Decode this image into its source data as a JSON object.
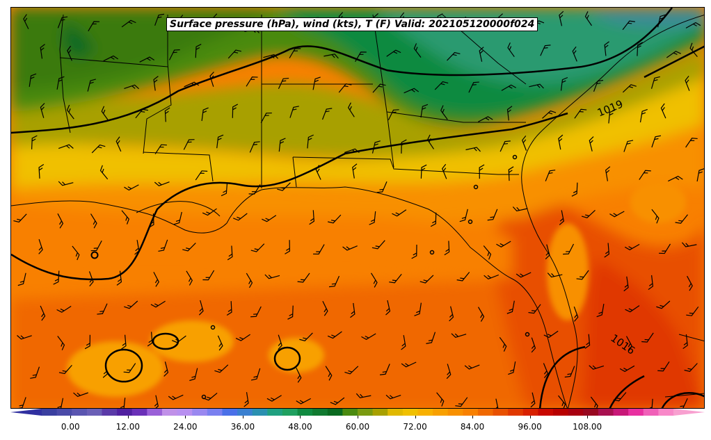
{
  "title": "Surface pressure (hPa), wind (kts), T (F) Valid: 202105120000f024",
  "isobar_labels": [
    "1019",
    "1016"
  ],
  "colorbar": {
    "min": -6,
    "max": 126,
    "step": 3,
    "extend": "both",
    "tick_labels": [
      "0.00",
      "12.00",
      "24.00",
      "36.00",
      "48.00",
      "60.00",
      "72.00",
      "84.00",
      "96.00",
      "108.00"
    ],
    "colors": [
      "#3a3fa0",
      "#4a4aa8",
      "#5a55b0",
      "#6a5fb6",
      "#5a3aa8",
      "#5020a0",
      "#6a30b8",
      "#9a60d8",
      "#c090e8",
      "#b890f0",
      "#9a88f0",
      "#7a80f0",
      "#4a70e8",
      "#3a80d0",
      "#2a90b0",
      "#20a080",
      "#20a060",
      "#108a40",
      "#107a30",
      "#0a6a20",
      "#4a8a10",
      "#7a9a10",
      "#a8a000",
      "#e0b800",
      "#f0c000",
      "#f8b000",
      "#f8a000",
      "#f89000",
      "#f88000",
      "#f06800",
      "#e85000",
      "#e03800",
      "#d82000",
      "#c80800",
      "#b80000",
      "#a80010",
      "#980820",
      "#a81050",
      "#c81878",
      "#e830a0",
      "#f060b8",
      "#f888c8"
    ]
  },
  "chart_data": {
    "type": "heatmap",
    "title": "Surface pressure (hPa), wind (kts), T (F) Valid: 202105120000f024",
    "colorbar_range": [
      -6,
      126
    ],
    "colorbar_ticks": [
      0,
      12,
      24,
      36,
      48,
      60,
      72,
      84,
      96,
      108
    ],
    "contour_labels": [
      1019,
      1016
    ]
  }
}
